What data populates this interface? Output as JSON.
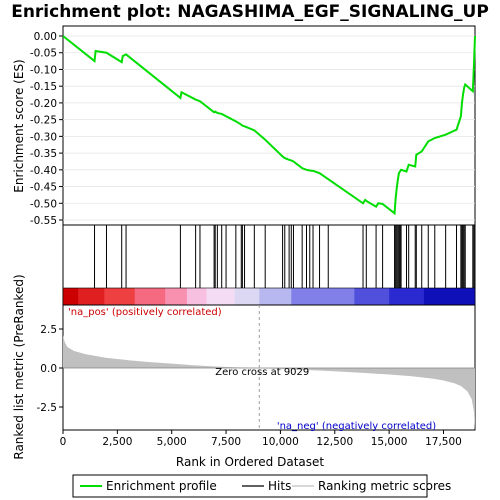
{
  "chart_data": {
    "type": "line",
    "title": "Enrichment plot: NAGASHIMA_EGF_SIGNALING_UP",
    "xlabel": "Rank in Ordered Dataset",
    "es_panel": {
      "ylabel": "Enrichment score (ES)",
      "ylim": [
        -0.55,
        0.02
      ],
      "yticks": [
        0.0,
        -0.05,
        -0.1,
        -0.15,
        -0.2,
        -0.25,
        -0.3,
        -0.35,
        -0.4,
        -0.45,
        -0.5,
        -0.55
      ],
      "ytick_labels": [
        "0.00",
        "-0.05",
        "-0.10",
        "-0.15",
        "-0.20",
        "-0.25",
        "-0.30",
        "-0.35",
        "-0.40",
        "-0.45",
        "-0.50",
        "-0.55"
      ],
      "series": [
        {
          "name": "Enrichment profile",
          "color": "#00dd00",
          "x": [
            0,
            1450,
            1500,
            2000,
            2700,
            2750,
            2900,
            5400,
            5450,
            6100,
            6300,
            6950,
            7000,
            7100,
            7300,
            7500,
            7950,
            8200,
            8250,
            8350,
            8800,
            9300,
            10100,
            10200,
            10400,
            10500,
            10600,
            11000,
            11200,
            11350,
            11500,
            11800,
            12200,
            13800,
            13900,
            14000,
            14400,
            14500,
            14700,
            15250,
            15300,
            15350,
            15400,
            15450,
            15500,
            15550,
            15800,
            15900,
            16200,
            16250,
            16500,
            16800,
            17100,
            17600,
            18100,
            18300,
            18350,
            18400,
            18450,
            18500,
            18850,
            18900,
            18950
          ],
          "y": [
            0.0,
            -0.075,
            -0.045,
            -0.05,
            -0.078,
            -0.06,
            -0.055,
            -0.185,
            -0.168,
            -0.19,
            -0.195,
            -0.228,
            -0.226,
            -0.23,
            -0.233,
            -0.24,
            -0.255,
            -0.265,
            -0.268,
            -0.27,
            -0.282,
            -0.31,
            -0.36,
            -0.365,
            -0.37,
            -0.372,
            -0.375,
            -0.395,
            -0.4,
            -0.402,
            -0.403,
            -0.41,
            -0.428,
            -0.5,
            -0.49,
            -0.495,
            -0.51,
            -0.5,
            -0.502,
            -0.53,
            -0.485,
            -0.455,
            -0.43,
            -0.41,
            -0.405,
            -0.4,
            -0.405,
            -0.385,
            -0.39,
            -0.355,
            -0.345,
            -0.315,
            -0.305,
            -0.295,
            -0.28,
            -0.24,
            -0.2,
            -0.175,
            -0.155,
            -0.145,
            -0.165,
            -0.09,
            0.0
          ]
        }
      ],
      "hits_x": [
        1450,
        2000,
        2700,
        2900,
        5400,
        6100,
        6300,
        6950,
        7000,
        7100,
        7300,
        7500,
        7950,
        8200,
        8250,
        8350,
        8800,
        9300,
        10100,
        10200,
        10400,
        10500,
        10600,
        11000,
        11200,
        11350,
        11500,
        11800,
        12200,
        13800,
        13950,
        14400,
        14700,
        15250,
        15300,
        15350,
        15400,
        15450,
        15500,
        15550,
        15800,
        15900,
        16200,
        16250,
        16500,
        16800,
        17100,
        17600,
        18100,
        18300,
        18350,
        18400,
        18450,
        18500,
        18850,
        18900
      ]
    },
    "heat_strip": {
      "colors": [
        "#cc0000",
        "#e02020",
        "#ee4040",
        "#f56a80",
        "#f890b0",
        "#f8c0e0",
        "#f4dcf4",
        "#dcd8f4",
        "#b8b8f0",
        "#8080e8",
        "#5050dc",
        "#2a2ad0",
        "#1010b8"
      ],
      "boundaries": [
        0,
        700,
        1900,
        3300,
        4700,
        5700,
        6600,
        7900,
        9029,
        10500,
        13400,
        15000,
        16600,
        18000,
        18950
      ]
    },
    "metric_panel": {
      "ylabel": "Ranked list metric (PreRanked)",
      "ylim": [
        -4.0,
        4.0
      ],
      "yticks": [
        2.5,
        0.0,
        -2.5
      ],
      "ytick_labels": [
        "2.5",
        "0.0",
        "-2.5"
      ],
      "series_name": "Ranking metric scores",
      "x": [
        0,
        80,
        200,
        500,
        1000,
        2000,
        3000,
        4000,
        5000,
        6000,
        7000,
        8000,
        9029,
        10000,
        11000,
        12000,
        13000,
        14000,
        15000,
        16000,
        17000,
        17500,
        18000,
        18300,
        18600,
        18800,
        18900,
        18950
      ],
      "values": [
        2.1,
        1.65,
        1.35,
        1.1,
        0.9,
        0.65,
        0.5,
        0.38,
        0.28,
        0.18,
        0.1,
        0.04,
        0.0,
        -0.06,
        -0.12,
        -0.18,
        -0.25,
        -0.33,
        -0.42,
        -0.52,
        -0.68,
        -0.8,
        -0.98,
        -1.15,
        -1.5,
        -2.0,
        -2.8,
        -4.0
      ],
      "zero_cross_label": "Zero cross at 9029",
      "zero_cross_x": 9029,
      "pos_label": "'na_pos' (positively correlated)",
      "neg_label": "'na_neg' (negatively correlated)"
    },
    "xlim": [
      0,
      18950
    ],
    "xticks": [
      0,
      2500,
      5000,
      7500,
      10000,
      12500,
      15000,
      17500
    ],
    "xtick_labels": [
      "0",
      "2,500",
      "5,000",
      "7,500",
      "10,000",
      "12,500",
      "15,000",
      "17,500"
    ],
    "legend": {
      "placement": "bottom",
      "items": [
        {
          "label": "Enrichment profile",
          "color": "#00dd00",
          "kind": "line"
        },
        {
          "label": "Hits",
          "color": "#000000",
          "kind": "line"
        },
        {
          "label": "Ranking metric scores",
          "color": "#c0c0c0",
          "kind": "line"
        }
      ]
    }
  }
}
